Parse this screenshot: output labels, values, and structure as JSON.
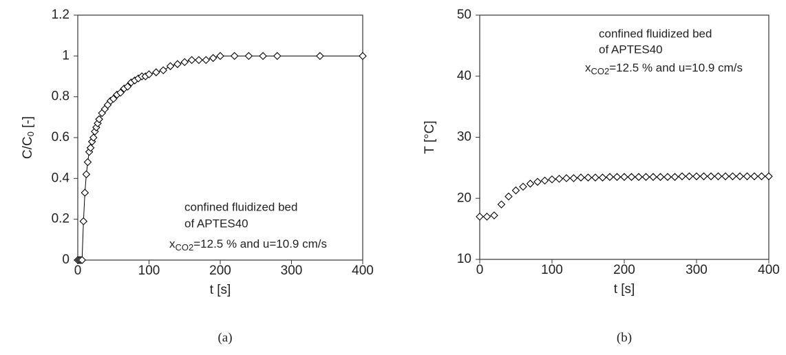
{
  "chart_data": [
    {
      "type": "line",
      "panel_label": "(a)",
      "xlabel": "t [s]",
      "ylabel": {
        "text": "C/C",
        "sub": "0",
        "rest": " [-]"
      },
      "annotations": [
        "confined fluidized bed",
        "of APTES40",
        {
          "text": "x",
          "sub": "CO2",
          "rest": "=12.5 % and u=10.9 cm/s"
        }
      ],
      "color": "#000000",
      "x": [
        0,
        2,
        4,
        6,
        8,
        10,
        12,
        14,
        16,
        18,
        20,
        22,
        24,
        26,
        28,
        30,
        34,
        38,
        42,
        46,
        50,
        55,
        60,
        65,
        70,
        75,
        80,
        85,
        90,
        95,
        100,
        110,
        120,
        130,
        140,
        150,
        160,
        170,
        180,
        190,
        200,
        220,
        240,
        260,
        280,
        340,
        400
      ],
      "values": [
        0,
        0,
        0,
        0,
        0.19,
        0.33,
        0.42,
        0.48,
        0.53,
        0.55,
        0.58,
        0.6,
        0.63,
        0.65,
        0.67,
        0.69,
        0.72,
        0.74,
        0.76,
        0.78,
        0.79,
        0.81,
        0.82,
        0.84,
        0.85,
        0.87,
        0.88,
        0.89,
        0.9,
        0.9,
        0.91,
        0.92,
        0.93,
        0.95,
        0.96,
        0.97,
        0.98,
        0.98,
        0.98,
        0.99,
        1,
        1,
        1,
        1,
        1,
        1,
        1
      ],
      "xlim": [
        0,
        400
      ],
      "xticks": [
        0,
        100,
        200,
        300,
        400
      ],
      "ylim": [
        0,
        1.2
      ],
      "yticks": [
        0,
        0.2,
        0.4,
        0.6,
        0.8,
        1,
        1.2
      ]
    },
    {
      "type": "scatter",
      "panel_label": "(b)",
      "xlabel": "t [s]",
      "ylabel": "T [°C]",
      "annotations": [
        "confined fluidized bed",
        "of APTES40",
        {
          "text": "x",
          "sub": "CO2",
          "rest": "=12.5 % and u=10.9 cm/s"
        }
      ],
      "color": "#000000",
      "x": [
        0,
        10,
        20,
        30,
        40,
        50,
        60,
        70,
        80,
        90,
        100,
        110,
        120,
        130,
        140,
        150,
        160,
        170,
        180,
        190,
        200,
        210,
        220,
        230,
        240,
        250,
        260,
        270,
        280,
        290,
        300,
        310,
        320,
        330,
        340,
        350,
        360,
        370,
        380,
        390,
        400
      ],
      "values": [
        17,
        17,
        17.2,
        19,
        20.3,
        21.3,
        21.9,
        22.4,
        22.7,
        22.9,
        23.1,
        23.2,
        23.3,
        23.3,
        23.4,
        23.4,
        23.4,
        23.4,
        23.5,
        23.5,
        23.5,
        23.5,
        23.5,
        23.5,
        23.5,
        23.5,
        23.5,
        23.5,
        23.6,
        23.6,
        23.6,
        23.6,
        23.6,
        23.6,
        23.6,
        23.6,
        23.6,
        23.6,
        23.6,
        23.6,
        23.6
      ],
      "xlim": [
        0,
        400
      ],
      "xticks": [
        0,
        100,
        200,
        300,
        400
      ],
      "ylim": [
        10,
        50
      ],
      "yticks": [
        10,
        20,
        30,
        40,
        50
      ]
    }
  ]
}
